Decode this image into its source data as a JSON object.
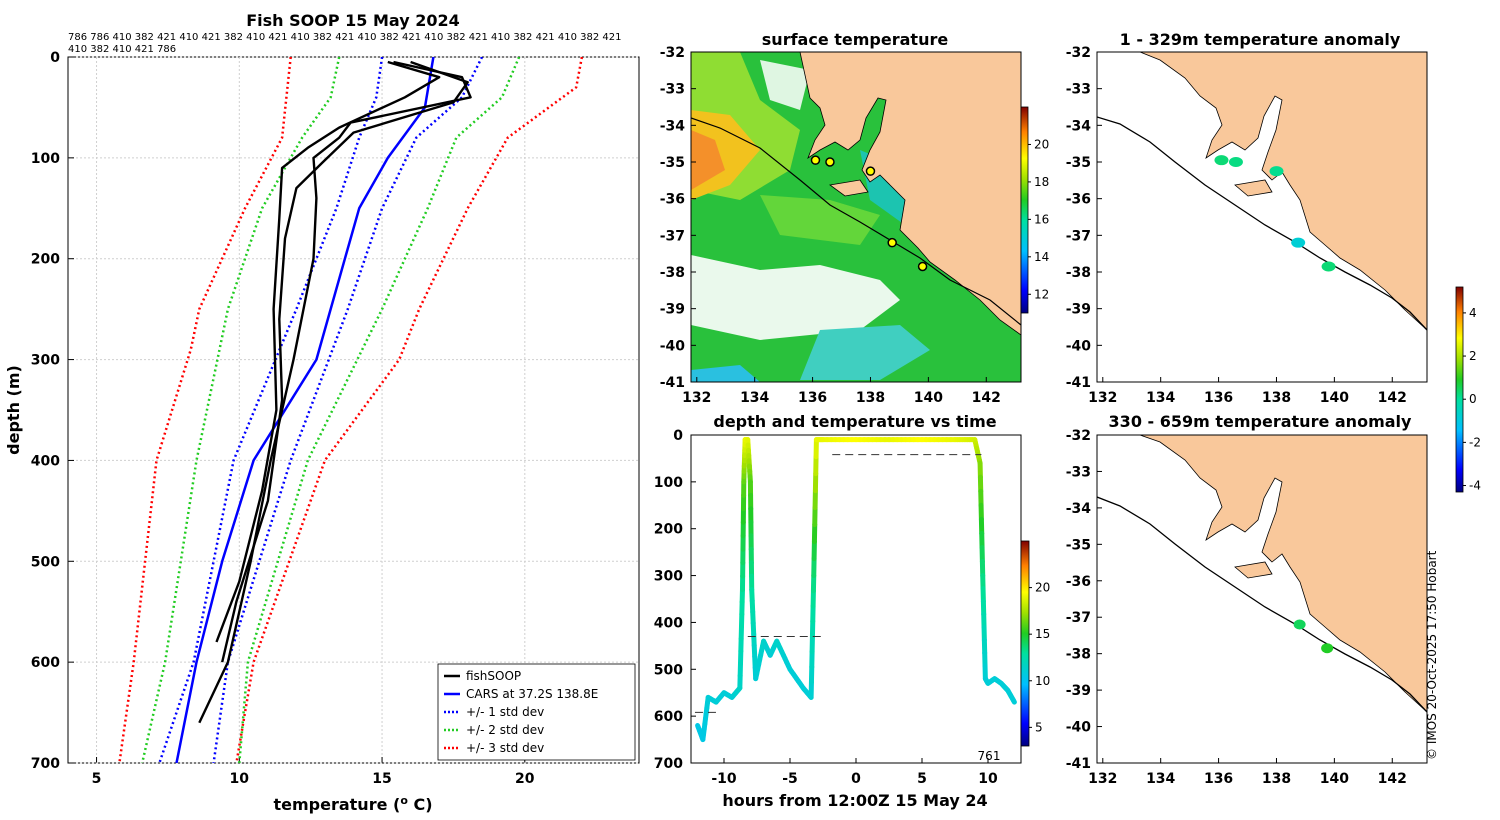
{
  "colors": {
    "land": "#f9c89b",
    "ocean_bg": "#ffffff",
    "black": "#000000",
    "cars": "#0000ff",
    "sd1": "#0000ff",
    "sd2": "#22cc22",
    "sd3": "#ff0000"
  },
  "profile_panel": {
    "title": "Fish SOOP 15 May 2024",
    "sample_ids_line1": "786 786 410 382 421 410 421 382 410 421 410 382 421 410 382 421 410 382 421  410 382 421 410 382 421",
    "sample_ids_line2": "410 382 410 421 786",
    "xlabel": "temperature (",
    "xlabel_sup": "o",
    "xlabel_end": " C)",
    "ylabel": "depth (m)",
    "xticks": [
      "5",
      "10",
      "15",
      "20"
    ],
    "yticks": [
      "0",
      "100",
      "200",
      "300",
      "400",
      "500",
      "600",
      "700"
    ],
    "legend": [
      {
        "label": "fishSOOP",
        "color": "#000000",
        "style": "solid"
      },
      {
        "label": "CARS at 37.2S 138.8E",
        "color": "#0000ff",
        "style": "solid"
      },
      {
        "label": "+/- 1 std dev",
        "color": "#0000ff",
        "style": "dot"
      },
      {
        "label": "+/- 2 std dev",
        "color": "#22cc22",
        "style": "dot"
      },
      {
        "label": "+/- 3 std dev",
        "color": "#ff0000",
        "style": "dot"
      }
    ]
  },
  "chart_data": [
    {
      "type": "line",
      "title": "Fish SOOP 15 May 2024",
      "xlabel": "temperature (o C)",
      "ylabel": "depth (m)",
      "xlim": [
        4,
        24
      ],
      "ylim": [
        700,
        0
      ],
      "series": [
        {
          "name": "CARS at 37.2S 138.8E",
          "depth": [
            0,
            50,
            100,
            150,
            200,
            300,
            400,
            500,
            600,
            700
          ],
          "temp": [
            16.8,
            16.5,
            15.2,
            14.2,
            13.7,
            12.7,
            10.5,
            9.4,
            8.5,
            7.8
          ]
        },
        {
          "name": "+1 std dev",
          "depth": [
            0,
            40,
            80,
            150,
            250,
            400,
            600,
            700
          ],
          "temp": [
            18.5,
            17.8,
            16.2,
            15.0,
            13.8,
            11.8,
            9.6,
            9.1
          ]
        },
        {
          "name": "-1 std dev",
          "depth": [
            0,
            40,
            80,
            150,
            250,
            400,
            600,
            700
          ],
          "temp": [
            15.0,
            14.8,
            14.2,
            13.4,
            12.0,
            9.8,
            8.4,
            7.2
          ]
        },
        {
          "name": "+2 std dev",
          "depth": [
            0,
            40,
            80,
            150,
            250,
            400,
            600,
            700
          ],
          "temp": [
            19.8,
            19.2,
            17.6,
            16.6,
            15.0,
            12.4,
            10.3,
            10.0
          ]
        },
        {
          "name": "-2 std dev",
          "depth": [
            0,
            40,
            80,
            150,
            250,
            400,
            600,
            700
          ],
          "temp": [
            13.5,
            13.2,
            12.2,
            10.8,
            9.6,
            8.5,
            7.4,
            6.6
          ]
        },
        {
          "name": "+3 std dev",
          "depth": [
            0,
            30,
            80,
            150,
            250,
            300,
            400,
            600,
            700
          ],
          "temp": [
            22.0,
            21.8,
            19.4,
            18.0,
            16.3,
            15.6,
            13.0,
            10.5,
            9.9
          ]
        },
        {
          "name": "-3 std dev",
          "depth": [
            0,
            80,
            150,
            250,
            290,
            400,
            600,
            700
          ],
          "temp": [
            11.8,
            11.5,
            10.2,
            8.6,
            8.3,
            7.1,
            6.3,
            5.8
          ]
        },
        {
          "name": "fishSOOP cast 1",
          "depth": [
            5,
            20,
            40,
            65,
            80,
            100,
            140,
            200,
            300,
            400,
            500,
            600,
            660
          ],
          "temp": [
            15.4,
            17.8,
            18.1,
            13.9,
            13.5,
            12.6,
            12.7,
            12.6,
            11.9,
            11.1,
            10.4,
            9.6,
            8.6
          ]
        },
        {
          "name": "fishSOOP cast 2",
          "depth": [
            5,
            20,
            40,
            70,
            90,
            110,
            160,
            250,
            350,
            430,
            520,
            580
          ],
          "temp": [
            15.2,
            17.0,
            15.8,
            13.5,
            12.4,
            11.5,
            11.4,
            11.2,
            11.3,
            10.8,
            10.0,
            9.2
          ]
        },
        {
          "name": "fishSOOP cast 3",
          "depth": [
            5,
            25,
            45,
            75,
            105,
            130,
            180,
            260,
            340,
            440,
            540,
            600
          ],
          "temp": [
            16.0,
            18.0,
            17.5,
            14.0,
            12.9,
            12.0,
            11.6,
            11.4,
            11.5,
            11.0,
            9.9,
            9.4
          ]
        }
      ]
    },
    {
      "type": "heatmap",
      "title": "surface temperature",
      "xticks": [
        "132",
        "134",
        "136",
        "138",
        "140",
        "142"
      ],
      "yticks": [
        "-32",
        "-33",
        "-34",
        "-35",
        "-36",
        "-37",
        "-38",
        "-39",
        "-40",
        "-41"
      ],
      "colorbar_ticks": [
        "20",
        "18",
        "16",
        "14",
        "12"
      ],
      "colorbar_range": [
        11,
        22
      ]
    },
    {
      "type": "line",
      "title": "depth and temperature vs time",
      "xlabel": "hours from 12:00Z 15 May 24",
      "xticks": [
        "-10",
        "-5",
        "0",
        "5",
        "10"
      ],
      "yticks": [
        "0",
        "100",
        "200",
        "300",
        "400",
        "500",
        "600",
        "700"
      ],
      "xlim": [
        -12.5,
        12.5
      ],
      "ylim": [
        700,
        0
      ],
      "annotation": "761",
      "colorbar_ticks": [
        "20",
        "15",
        "10",
        "5"
      ],
      "colorbar_range": [
        3,
        25
      ],
      "hours": [
        -12,
        -11.6,
        -11.2,
        -10.6,
        -10,
        -9.4,
        -8.8,
        -8.6,
        -8.5,
        -8.4,
        -8.2,
        -8.0,
        -7.9,
        -7.6,
        -7.0,
        -6.5,
        -6.0,
        -5.0,
        -4.0,
        -3.4,
        -3.2,
        -3.0,
        -2.5,
        0,
        2.5,
        5,
        7.5,
        9.0,
        9.4,
        9.6,
        9.8,
        10.0,
        10.5,
        11.0,
        11.5,
        12.0
      ],
      "depths": [
        620,
        650,
        560,
        570,
        550,
        560,
        540,
        330,
        100,
        10,
        10,
        100,
        330,
        520,
        440,
        470,
        440,
        500,
        540,
        560,
        300,
        10,
        10,
        10,
        10,
        10,
        10,
        10,
        60,
        300,
        520,
        530,
        520,
        530,
        545,
        570
      ],
      "temps": [
        10.5,
        10.5,
        11,
        11,
        11,
        11,
        11.5,
        13,
        16,
        19,
        19,
        16,
        13,
        11,
        11.5,
        11,
        11.5,
        11,
        11,
        11,
        13.5,
        19,
        19,
        19.5,
        19,
        19.5,
        19,
        18.5,
        17,
        13.5,
        11,
        11,
        11,
        11,
        11,
        11
      ]
    },
    {
      "type": "scatter",
      "title": "1 - 329m temperature anomaly",
      "xticks": [
        "132",
        "134",
        "136",
        "138",
        "140",
        "142"
      ],
      "yticks": [
        "-32",
        "-33",
        "-34",
        "-35",
        "-36",
        "-37",
        "-38",
        "-39",
        "-40",
        "-41"
      ],
      "points": [
        {
          "lon": 136.1,
          "lat": -34.95,
          "anom": 0.3
        },
        {
          "lon": 136.6,
          "lat": -35.0,
          "anom": 0.2
        },
        {
          "lon": 138.0,
          "lat": -35.25,
          "anom": 0.1
        },
        {
          "lon": 138.75,
          "lat": -37.2,
          "anom": -0.8
        },
        {
          "lon": 139.8,
          "lat": -37.85,
          "anom": 0.3
        }
      ],
      "colorbar_ticks": [
        "4",
        "2",
        "0",
        "-2",
        "-4"
      ],
      "colorbar_range": [
        -4.3,
        5.2
      ]
    },
    {
      "type": "scatter",
      "title": "330 - 659m temperature anomaly",
      "xticks": [
        "132",
        "134",
        "136",
        "138",
        "140",
        "142"
      ],
      "yticks": [
        "-32",
        "-33",
        "-34",
        "-35",
        "-36",
        "-37",
        "-38",
        "-39",
        "-40",
        "-41"
      ],
      "points": [
        {
          "lon": 138.8,
          "lat": -37.2,
          "anom": 0.5
        },
        {
          "lon": 139.75,
          "lat": -37.85,
          "anom": 0.9
        }
      ]
    }
  ],
  "sst_map": {
    "title": "surface temperature",
    "xticks": [
      "132",
      "134",
      "136",
      "138",
      "140",
      "142"
    ],
    "yticks": [
      "-32",
      "-33",
      "-34",
      "-35",
      "-36",
      "-37",
      "-38",
      "-39",
      "-40",
      "-41"
    ],
    "colorbar_ticks": [
      "20",
      "18",
      "16",
      "14",
      "12"
    ]
  },
  "time_panel": {
    "title": "depth and temperature vs time",
    "xlabel": "hours from 12:00Z 15 May 24",
    "xticks": [
      "-10",
      "-5",
      "0",
      "5",
      "10"
    ],
    "yticks": [
      "0",
      "100",
      "200",
      "300",
      "400",
      "500",
      "600",
      "700"
    ],
    "annotation": "761",
    "colorbar_ticks": [
      "20",
      "15",
      "10",
      "5"
    ]
  },
  "anom1_map": {
    "title": "1 - 329m temperature anomaly",
    "xticks": [
      "132",
      "134",
      "136",
      "138",
      "140",
      "142"
    ],
    "yticks": [
      "-32",
      "-33",
      "-34",
      "-35",
      "-36",
      "-37",
      "-38",
      "-39",
      "-40",
      "-41"
    ],
    "colorbar_ticks": [
      "4",
      "2",
      "0",
      "-2",
      "-4"
    ]
  },
  "anom2_map": {
    "title": "330 - 659m temperature anomaly",
    "xticks": [
      "132",
      "134",
      "136",
      "138",
      "140",
      "142"
    ],
    "yticks": [
      "-32",
      "-33",
      "-34",
      "-35",
      "-36",
      "-37",
      "-38",
      "-39",
      "-40",
      "-41"
    ]
  },
  "credit": "© IMOS 20-Oct-2025 17:50 Hobart"
}
